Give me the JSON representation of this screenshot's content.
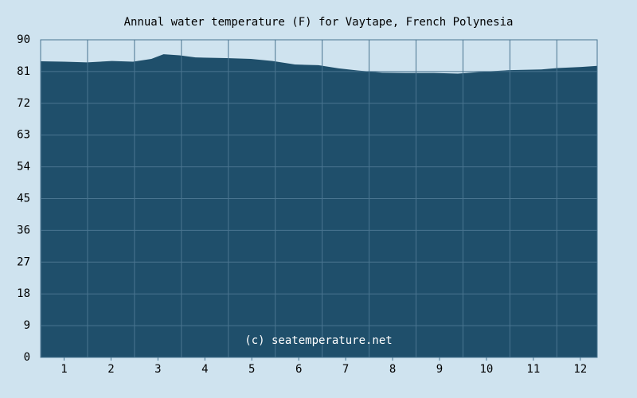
{
  "chart_data": {
    "type": "area",
    "title": "Annual water temperature (F) for Vaytape, French Polynesia",
    "annotation": "(c) seatemperature.net",
    "x": [
      0.51,
      1,
      1.49,
      2.02,
      2.47,
      2.86,
      3.12,
      3.46,
      3.8,
      4.46,
      4.98,
      5.44,
      5.92,
      6.42,
      6.85,
      7.27,
      7.78,
      8.41,
      8.88,
      9.39,
      9.98,
      10.49,
      11.17,
      11.51,
      12.02,
      12.36
    ],
    "values": [
      83.9,
      83.8,
      83.6,
      84.0,
      83.8,
      84.6,
      85.9,
      85.6,
      85.0,
      84.8,
      84.6,
      84.0,
      83.0,
      82.8,
      81.9,
      81.3,
      80.7,
      80.6,
      80.6,
      80.4,
      81.0,
      81.4,
      81.6,
      82.0,
      82.3,
      82.6
    ],
    "color": "#1f4f6b",
    "xlim": [
      0.5,
      12.36
    ],
    "xticks": [
      1,
      2,
      3,
      4,
      5,
      6,
      7,
      8,
      9,
      10,
      11,
      12
    ],
    "ylim": [
      0,
      90
    ],
    "yticks": [
      0,
      9,
      18,
      27,
      36,
      45,
      54,
      63,
      72,
      81,
      90
    ],
    "grid": true
  }
}
